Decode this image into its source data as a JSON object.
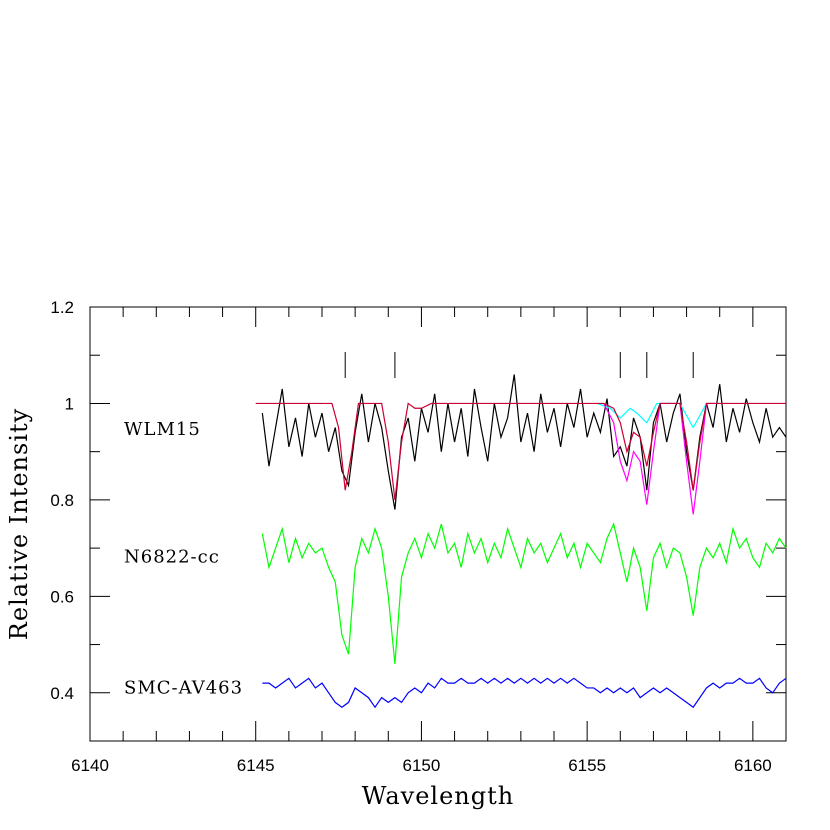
{
  "chart_data": {
    "type": "line",
    "xlabel": "Wavelength",
    "ylabel": "Relative Intensity",
    "xlim": [
      6140,
      6161
    ],
    "ylim": [
      0.3,
      1.2
    ],
    "xticks": [
      6140,
      6145,
      6150,
      6155,
      6160
    ],
    "yticks": [
      0.4,
      0.6,
      0.8,
      1,
      1.2
    ],
    "xminorticks": [
      6141,
      6142,
      6143,
      6144,
      6146,
      6147,
      6148,
      6149,
      6151,
      6152,
      6153,
      6154,
      6156,
      6157,
      6158,
      6159,
      6161
    ],
    "yminorticks": [
      0.3,
      0.5,
      0.7,
      0.9,
      1.1
    ],
    "line_marks": [
      6147.7,
      6149.2,
      6156.0,
      6156.8,
      6158.2
    ],
    "x": [
      6145.2,
      6145.4,
      6145.6,
      6145.8,
      6146.0,
      6146.2,
      6146.4,
      6146.6,
      6146.8,
      6147.0,
      6147.2,
      6147.4,
      6147.6,
      6147.8,
      6148.0,
      6148.2,
      6148.4,
      6148.6,
      6148.8,
      6149.0,
      6149.2,
      6149.4,
      6149.6,
      6149.8,
      6150.0,
      6150.2,
      6150.4,
      6150.6,
      6150.8,
      6151.0,
      6151.2,
      6151.4,
      6151.6,
      6151.8,
      6152.0,
      6152.2,
      6152.4,
      6152.6,
      6152.8,
      6153.0,
      6153.2,
      6153.4,
      6153.6,
      6153.8,
      6154.0,
      6154.2,
      6154.4,
      6154.6,
      6154.8,
      6155.0,
      6155.2,
      6155.4,
      6155.6,
      6155.8,
      6156.0,
      6156.2,
      6156.4,
      6156.6,
      6156.8,
      6157.0,
      6157.2,
      6157.4,
      6157.6,
      6157.8,
      6158.0,
      6158.2,
      6158.4,
      6158.6,
      6158.8,
      6159.0,
      6159.2,
      6159.4,
      6159.6,
      6159.8,
      6160.0,
      6160.2,
      6160.4,
      6160.6,
      6160.8,
      6161.0
    ],
    "series": [
      {
        "name": "WLM15",
        "color": "#000000",
        "values": [
          0.98,
          0.87,
          0.95,
          1.03,
          0.91,
          0.97,
          0.89,
          1.0,
          0.93,
          0.98,
          0.9,
          0.95,
          0.86,
          0.83,
          0.94,
          1.02,
          0.92,
          1.0,
          0.95,
          0.86,
          0.78,
          0.93,
          0.97,
          0.88,
          0.99,
          0.94,
          1.02,
          0.9,
          1.0,
          0.92,
          0.99,
          0.89,
          1.03,
          0.95,
          0.88,
          1.0,
          0.93,
          0.97,
          1.06,
          0.92,
          0.98,
          0.9,
          1.02,
          0.94,
          0.99,
          0.91,
          1.0,
          0.95,
          1.03,
          0.93,
          0.98,
          0.94,
          1.01,
          0.89,
          0.91,
          0.87,
          0.97,
          0.93,
          0.82,
          0.96,
          1.0,
          0.92,
          0.98,
          1.02,
          0.9,
          0.82,
          0.93,
          1.0,
          0.95,
          1.04,
          0.92,
          0.99,
          0.94,
          1.01,
          0.96,
          0.92,
          0.99,
          0.93,
          0.95,
          0.93
        ]
      },
      {
        "name": "N6822-cc",
        "color": "#00ff00",
        "values": [
          0.73,
          0.66,
          0.7,
          0.74,
          0.67,
          0.72,
          0.68,
          0.71,
          0.69,
          0.7,
          0.66,
          0.63,
          0.52,
          0.48,
          0.66,
          0.72,
          0.69,
          0.74,
          0.7,
          0.6,
          0.46,
          0.64,
          0.69,
          0.72,
          0.68,
          0.73,
          0.7,
          0.75,
          0.69,
          0.71,
          0.66,
          0.73,
          0.69,
          0.72,
          0.67,
          0.71,
          0.68,
          0.74,
          0.7,
          0.66,
          0.72,
          0.69,
          0.71,
          0.67,
          0.7,
          0.73,
          0.68,
          0.71,
          0.66,
          0.71,
          0.69,
          0.67,
          0.72,
          0.75,
          0.69,
          0.63,
          0.7,
          0.66,
          0.57,
          0.68,
          0.71,
          0.66,
          0.7,
          0.69,
          0.64,
          0.56,
          0.66,
          0.7,
          0.68,
          0.71,
          0.67,
          0.74,
          0.7,
          0.72,
          0.68,
          0.66,
          0.71,
          0.69,
          0.72,
          0.7
        ]
      },
      {
        "name": "SMC-AV463",
        "color": "#0000ff",
        "values": [
          0.42,
          0.42,
          0.41,
          0.42,
          0.43,
          0.41,
          0.42,
          0.43,
          0.41,
          0.42,
          0.4,
          0.38,
          0.37,
          0.38,
          0.41,
          0.4,
          0.39,
          0.37,
          0.39,
          0.38,
          0.39,
          0.38,
          0.4,
          0.41,
          0.4,
          0.42,
          0.41,
          0.43,
          0.42,
          0.42,
          0.43,
          0.42,
          0.42,
          0.43,
          0.42,
          0.43,
          0.42,
          0.43,
          0.42,
          0.43,
          0.42,
          0.43,
          0.42,
          0.43,
          0.42,
          0.43,
          0.42,
          0.43,
          0.42,
          0.41,
          0.41,
          0.4,
          0.41,
          0.4,
          0.41,
          0.4,
          0.41,
          0.39,
          0.4,
          0.41,
          0.4,
          0.41,
          0.4,
          0.39,
          0.38,
          0.37,
          0.39,
          0.41,
          0.42,
          0.41,
          0.42,
          0.42,
          0.43,
          0.42,
          0.42,
          0.43,
          0.41,
          0.4,
          0.42,
          0.43
        ]
      }
    ],
    "models": [
      {
        "color": "#00ffff",
        "x": [
          6155.3,
          6155.7,
          6156.0,
          6156.3,
          6156.5,
          6156.8,
          6157.1,
          6157.8,
          6158.2,
          6158.6,
          6159.0
        ],
        "values": [
          1.0,
          0.99,
          0.97,
          0.99,
          0.98,
          0.96,
          1.0,
          1.0,
          0.95,
          1.0,
          1.0
        ]
      },
      {
        "color": "#ff00ff",
        "x": [
          6155.5,
          6155.8,
          6156.0,
          6156.2,
          6156.4,
          6156.6,
          6156.8,
          6157.0,
          6157.2,
          6157.8,
          6158.0,
          6158.2,
          6158.4,
          6158.6,
          6159.0
        ],
        "values": [
          1.0,
          0.96,
          0.88,
          0.84,
          0.9,
          0.88,
          0.79,
          0.9,
          1.0,
          1.0,
          0.88,
          0.77,
          0.88,
          1.0,
          1.0
        ]
      },
      {
        "color": "#cc0033",
        "x": [
          6145,
          6147.3,
          6147.5,
          6147.7,
          6147.9,
          6148.1,
          6148.8,
          6149.0,
          6149.2,
          6149.4,
          6149.6,
          6149.8,
          6150.0,
          6150.3,
          6155.5,
          6155.8,
          6156.0,
          6156.2,
          6156.4,
          6156.6,
          6156.8,
          6157.0,
          6157.2,
          6157.8,
          6158.0,
          6158.2,
          6158.4,
          6158.6,
          6161
        ],
        "values": [
          1.0,
          1.0,
          0.95,
          0.82,
          0.9,
          1.0,
          1.0,
          0.92,
          0.8,
          0.92,
          1.0,
          0.99,
          0.99,
          1.0,
          1.0,
          0.99,
          0.96,
          0.9,
          0.94,
          0.93,
          0.87,
          0.94,
          1.0,
          1.0,
          0.92,
          0.82,
          0.92,
          1.0,
          1.0
        ]
      }
    ]
  }
}
